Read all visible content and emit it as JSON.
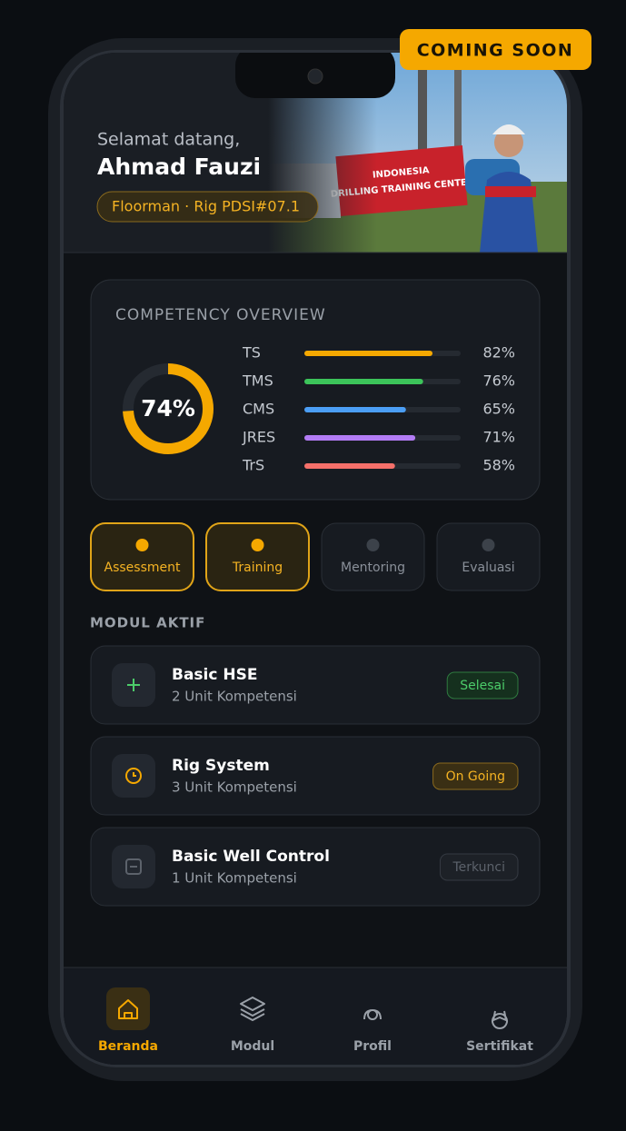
{
  "badge": "COMING SOON",
  "header": {
    "greeting": "Selamat datang,",
    "name": "Ahmad Fauzi",
    "role": "Floorman · Rig PDSI#07.1",
    "photo_sign": [
      "INDONESIA",
      "DRILLING TRAINING CENTER"
    ]
  },
  "overview": {
    "title": "COMPETENCY OVERVIEW",
    "total": {
      "value": 74,
      "label": "74%"
    },
    "items": [
      {
        "name": "TS",
        "value": 82,
        "label": "82%",
        "color": "#f5a800"
      },
      {
        "name": "TMS",
        "value": 76,
        "label": "76%",
        "color": "#3cc45a"
      },
      {
        "name": "CMS",
        "value": 65,
        "label": "65%",
        "color": "#4b9ef5"
      },
      {
        "name": "JRES",
        "value": 71,
        "label": "71%",
        "color": "#b37cf5"
      },
      {
        "name": "TrS",
        "value": 58,
        "label": "58%",
        "color": "#f5706a"
      }
    ]
  },
  "stages": [
    {
      "label": "Assessment",
      "active": true
    },
    {
      "label": "Training",
      "active": true
    },
    {
      "label": "Mentoring",
      "active": false
    },
    {
      "label": "Evaluasi",
      "active": false
    }
  ],
  "modules_title": "MODUL AKTIF",
  "modules": [
    {
      "title": "Basic HSE",
      "units": "2 Unit Kompetensi",
      "status": "Selesai",
      "state": "done"
    },
    {
      "title": "Rig System",
      "units": "3 Unit Kompetensi",
      "status": "On Going",
      "state": "going"
    },
    {
      "title": "Basic Well Control",
      "units": "1 Unit Kompetensi",
      "status": "Terkunci",
      "state": "locked"
    }
  ],
  "nav": [
    {
      "label": "Beranda",
      "active": true
    },
    {
      "label": "Modul",
      "active": false
    },
    {
      "label": "Profil",
      "active": false
    },
    {
      "label": "Sertifikat",
      "active": false
    }
  ]
}
